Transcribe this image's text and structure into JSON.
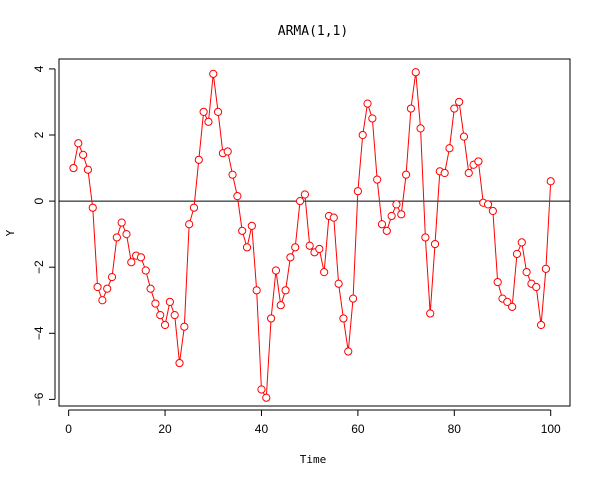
{
  "chart_data": {
    "type": "line",
    "title": "ARMA(1,1)",
    "xlabel": "Time",
    "ylabel": "Y",
    "xlim": [
      -2,
      104
    ],
    "ylim": [
      -6.2,
      4.3
    ],
    "xticks": [
      0,
      20,
      40,
      60,
      80,
      100
    ],
    "yticks": [
      -6,
      -4,
      -2,
      0,
      2,
      4
    ],
    "grid": false,
    "colors": {
      "series": "#ff0000",
      "reference_line": "#000000"
    },
    "reference_line_y": 0,
    "series": [
      {
        "x": [
          1,
          2,
          3,
          4,
          5,
          6,
          7,
          8,
          9,
          10,
          11,
          12,
          13,
          14,
          15,
          16,
          17,
          18,
          19,
          20,
          21,
          22,
          23,
          24,
          25,
          26,
          27,
          28,
          29,
          30,
          31,
          32,
          33,
          34,
          35,
          36,
          37,
          38,
          39,
          40,
          41,
          42,
          43,
          44,
          45,
          46,
          47,
          48,
          49,
          50,
          51,
          52,
          53,
          54,
          55,
          56,
          57,
          58,
          59,
          60,
          61,
          62,
          63,
          64,
          65,
          66,
          67,
          68,
          69,
          70,
          71,
          72,
          73,
          74,
          75,
          76,
          77,
          78,
          79,
          80,
          81,
          82,
          83,
          84,
          85,
          86,
          87,
          88,
          89,
          90,
          91,
          92,
          93,
          94,
          95,
          96,
          97,
          98,
          99,
          100
        ],
        "values": [
          1.0,
          1.75,
          1.4,
          0.95,
          -0.2,
          -2.6,
          -3.0,
          -2.65,
          -2.3,
          -1.1,
          -0.65,
          -1.0,
          -1.85,
          -1.65,
          -1.7,
          -2.1,
          -2.65,
          -3.1,
          -3.45,
          -3.75,
          -3.05,
          -3.45,
          -4.9,
          -3.8,
          -0.7,
          -0.2,
          1.25,
          2.7,
          2.4,
          3.85,
          2.7,
          1.45,
          1.5,
          0.8,
          0.15,
          -0.9,
          -1.4,
          -0.75,
          -2.7,
          -5.7,
          -5.95,
          -3.55,
          -2.1,
          -3.15,
          -2.7,
          -1.7,
          -1.4,
          0.0,
          0.2,
          -1.35,
          -1.55,
          -1.45,
          -2.15,
          -0.45,
          -0.5,
          -2.5,
          -3.55,
          -4.55,
          -2.95,
          0.3,
          2.0,
          2.95,
          2.5,
          0.65,
          -0.7,
          -0.9,
          -0.45,
          -0.1,
          -0.4,
          0.8,
          2.8,
          3.9,
          2.2,
          -1.1,
          -3.4,
          -1.3,
          0.9,
          0.85,
          1.6,
          2.8,
          3.0,
          1.95,
          0.85,
          1.1,
          1.2,
          -0.05,
          -0.1,
          -0.3,
          -2.45,
          -2.95,
          -3.05,
          -3.2,
          -1.6,
          -1.25,
          -2.15,
          -2.5,
          -2.6,
          -3.75,
          -2.05,
          0.6
        ]
      }
    ]
  }
}
